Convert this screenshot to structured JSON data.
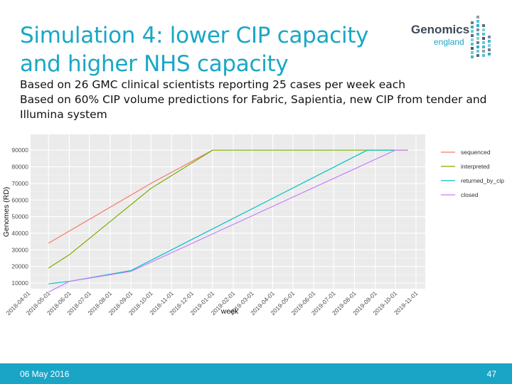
{
  "slide": {
    "title_line1": "Simulation 4: lower CIP capacity",
    "title_line2": "and higher NHS capacity",
    "desc_line1": "Based on 26 GMC clinical scientists reporting 25 cases per week each",
    "desc_line2": "Based on 60% CIP volume predictions for Fabric, Sapientia, new CIP from tender and",
    "desc_line3": "Illumina system",
    "date": "06 May 2016",
    "page": "47"
  },
  "logo": {
    "word": "Genomics",
    "sub": "england",
    "color_dark": "#3d4a57",
    "color_accent": "#19a7c5"
  },
  "colors": {
    "title": "#19a7c5",
    "footer": "#1aa5c6",
    "panel": "#ebebeb"
  },
  "chart_data": {
    "type": "line",
    "xlabel": "week",
    "ylabel": "Genomes (RD)",
    "ylim": [
      0,
      90000
    ],
    "xlim": [
      "2018-04-01",
      "2019-11-01"
    ],
    "y_ticks": [
      10000,
      20000,
      30000,
      40000,
      50000,
      60000,
      70000,
      80000,
      90000
    ],
    "y_tick_labels": [
      "10000",
      "20000",
      "30000",
      "40000",
      "50000",
      "60000",
      "70000",
      "80000",
      "90000"
    ],
    "x_ticks": [
      "2018-04-01",
      "2018-05-01",
      "2018-06-01",
      "2018-07-01",
      "2018-08-01",
      "2018-09-01",
      "2018-10-01",
      "2018-11-01",
      "2018-12-01",
      "2019-01-01",
      "2019-02-01",
      "2019-03-01",
      "2019-04-01",
      "2019-05-01",
      "2019-06-01",
      "2019-07-01",
      "2019-08-01",
      "2019-09-01",
      "2019-10-01",
      "2019-11-01"
    ],
    "x_tick_labels": [
      "2018-04-01",
      "2018-05-01",
      "2018-06-01",
      "2018-07-01",
      "2018-08-01",
      "2018-09-01",
      "2018-10-01",
      "2018-11-01",
      "2018-12-01",
      "2019-01-01",
      "2019-02-01",
      "2019-03-01",
      "2019-04-01",
      "2019-05-01",
      "2019-06-01",
      "2019-07-01",
      "2019-08-01",
      "2019-09-01",
      "2019-10-01",
      "2019-11-01"
    ],
    "grid": true,
    "legend_position": "right",
    "series": [
      {
        "name": "sequenced",
        "color": "#f8766d",
        "x": [
          "2018-05-01",
          "2018-10-01",
          "2019-01-01"
        ],
        "y": [
          34000,
          70000,
          90000
        ]
      },
      {
        "name": "interpreted",
        "color": "#7cae00",
        "x": [
          "2018-05-01",
          "2018-06-01",
          "2018-10-01",
          "2019-01-01",
          "2019-10-20"
        ],
        "y": [
          19000,
          27000,
          67000,
          90000,
          90000
        ]
      },
      {
        "name": "returned_by_cip",
        "color": "#00bfc4",
        "x": [
          "2018-05-01",
          "2018-06-01",
          "2018-09-01",
          "2019-08-20",
          "2019-10-01"
        ],
        "y": [
          9500,
          11000,
          17500,
          90000,
          90000
        ]
      },
      {
        "name": "closed",
        "color": "#c77cff",
        "x": [
          "2018-05-01",
          "2018-06-01",
          "2018-09-01",
          "2019-10-01",
          "2019-10-20"
        ],
        "y": [
          4500,
          11000,
          17000,
          90000,
          90000
        ]
      }
    ]
  }
}
